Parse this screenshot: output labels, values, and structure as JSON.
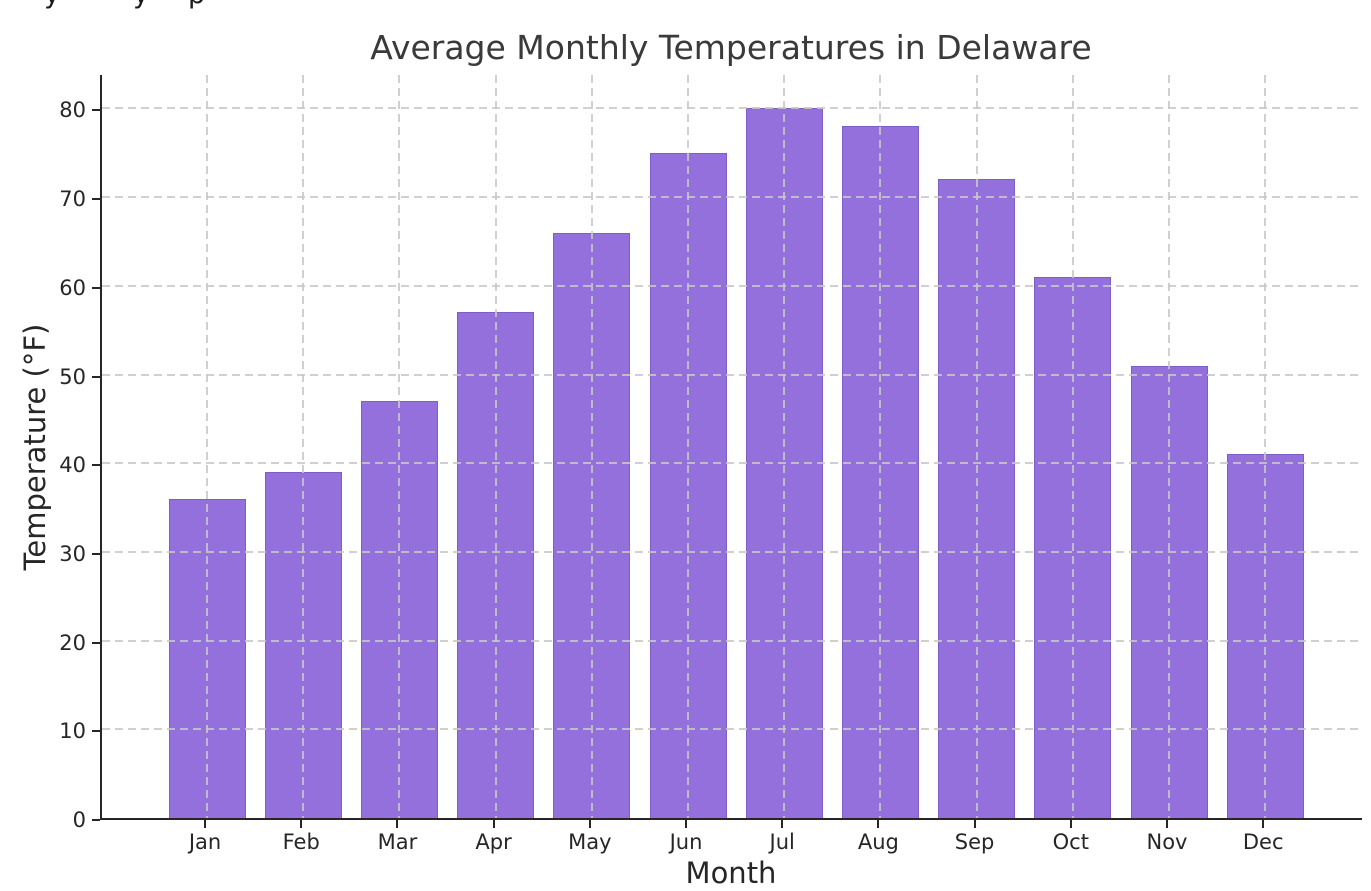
{
  "page": {
    "background": "#ffffff"
  },
  "top_artifact": {
    "description": "descenders of a cropped text line at top edge",
    "fragments": [
      {
        "glyph": "y",
        "x": 44
      },
      {
        "glyph": "y",
        "x": 133
      },
      {
        "glyph": "p",
        "x": 188
      }
    ]
  },
  "chart_data": {
    "type": "bar",
    "title": "Average Monthly Temperatures in Delaware",
    "xlabel": "Month",
    "ylabel": "Temperature (°F)",
    "categories": [
      "Jan",
      "Feb",
      "Mar",
      "Apr",
      "May",
      "Jun",
      "Jul",
      "Aug",
      "Sep",
      "Oct",
      "Nov",
      "Dec"
    ],
    "values": [
      36,
      39,
      47,
      57,
      66,
      75,
      80,
      78,
      72,
      61,
      51,
      41
    ],
    "yticks": [
      0,
      10,
      20,
      30,
      40,
      50,
      60,
      70,
      80
    ],
    "ylim": [
      0,
      84
    ],
    "grid": "both, dashed, drawn over bars",
    "legend": "none",
    "colors": {
      "bar_fill": "#9370DB",
      "bar_edge": "#7b5ec6",
      "grid": "#cccccc",
      "axis": "#262626",
      "tick_text": "#262626",
      "title_text": "#3a3a3a",
      "background": "#ffffff"
    }
  }
}
